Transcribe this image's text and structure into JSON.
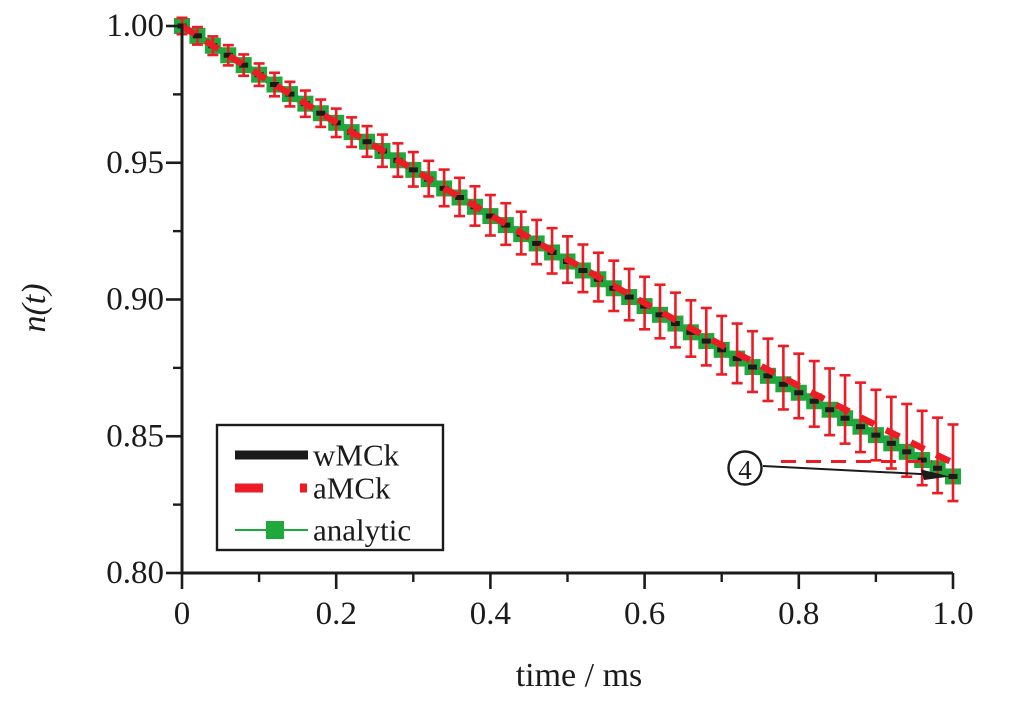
{
  "figure": {
    "background": "#ffffff",
    "frame": "left-bottom-axes-only"
  },
  "chart_data": {
    "type": "line",
    "title": "",
    "xlabel": "time / ms",
    "ylabel": "n(t)",
    "xlim": [
      0,
      1.0
    ],
    "ylim": [
      0.8,
      1.0
    ],
    "grid": false,
    "xticks": {
      "major": [
        0,
        0.2,
        0.4,
        0.6,
        0.8,
        1.0
      ],
      "labels": [
        "0",
        "0.2",
        "0.4",
        "0.6",
        "0.8",
        "1.0"
      ],
      "minor": [
        0.1,
        0.3,
        0.5,
        0.7,
        0.9
      ]
    },
    "yticks": {
      "major": [
        1.0,
        0.95,
        0.9,
        0.85,
        0.8
      ],
      "labels": [
        "1.00",
        "0.95",
        "0.90",
        "0.85",
        "0.80"
      ],
      "minor": [
        0.975,
        0.925,
        0.875,
        0.825
      ]
    },
    "x": [
      0.0,
      0.02,
      0.04,
      0.06,
      0.08,
      0.1,
      0.12,
      0.14,
      0.16,
      0.18,
      0.2,
      0.22,
      0.24,
      0.26,
      0.28,
      0.3,
      0.32,
      0.34,
      0.36,
      0.38,
      0.4,
      0.42,
      0.44,
      0.46,
      0.48,
      0.5,
      0.52,
      0.54,
      0.56,
      0.58,
      0.6,
      0.62,
      0.64,
      0.66,
      0.68,
      0.7,
      0.72,
      0.74,
      0.76,
      0.78,
      0.8,
      0.82,
      0.84,
      0.86,
      0.88,
      0.9,
      0.92,
      0.94,
      0.96,
      0.98,
      1.0
    ],
    "series": [
      {
        "name": "wMCk",
        "style": "thick-solid-line",
        "color": "#1b1b1b",
        "values": [
          1.0,
          0.9964,
          0.9928,
          0.9893,
          0.9857,
          0.9822,
          0.9786,
          0.9751,
          0.9716,
          0.9681,
          0.9646,
          0.9612,
          0.9577,
          0.9543,
          0.9509,
          0.9474,
          0.944,
          0.9406,
          0.9373,
          0.9339,
          0.9305,
          0.9272,
          0.9239,
          0.9205,
          0.9172,
          0.9139,
          0.9106,
          0.9074,
          0.9041,
          0.9009,
          0.8976,
          0.8944,
          0.8912,
          0.888,
          0.8848,
          0.8816,
          0.8784,
          0.8753,
          0.8721,
          0.869,
          0.8659,
          0.8628,
          0.8597,
          0.8566,
          0.8535,
          0.8504,
          0.8474,
          0.8443,
          0.8413,
          0.8383,
          0.8353
        ]
      },
      {
        "name": "aMCk",
        "style": "thick-dashed-line-with-errorbars",
        "color": "#ed1c24",
        "values": [
          1.0,
          0.9964,
          0.9928,
          0.9893,
          0.9857,
          0.9822,
          0.9786,
          0.9751,
          0.9716,
          0.9681,
          0.9646,
          0.9612,
          0.9578,
          0.9544,
          0.951,
          0.9476,
          0.9442,
          0.9408,
          0.9375,
          0.9342,
          0.9308,
          0.9276,
          0.9243,
          0.921,
          0.9178,
          0.9146,
          0.9114,
          0.9082,
          0.905,
          0.9018,
          0.8987,
          0.8956,
          0.8925,
          0.8894,
          0.8864,
          0.8833,
          0.8803,
          0.8773,
          0.8743,
          0.8714,
          0.8684,
          0.8655,
          0.8626,
          0.8598,
          0.8569,
          0.8541,
          0.8513,
          0.8485,
          0.8457,
          0.843,
          0.8403
        ],
        "errors": [
          0.003,
          0.0032,
          0.0034,
          0.0037,
          0.0039,
          0.0041,
          0.0043,
          0.0045,
          0.0048,
          0.005,
          0.0052,
          0.0054,
          0.0056,
          0.0059,
          0.0061,
          0.0063,
          0.0065,
          0.0067,
          0.007,
          0.0072,
          0.0074,
          0.0076,
          0.0078,
          0.0081,
          0.0083,
          0.0085,
          0.0087,
          0.0089,
          0.0092,
          0.0094,
          0.0096,
          0.0098,
          0.01,
          0.0103,
          0.0105,
          0.0107,
          0.0109,
          0.0111,
          0.0114,
          0.0116,
          0.0118,
          0.012,
          0.0122,
          0.0125,
          0.0127,
          0.0129,
          0.0131,
          0.0133,
          0.0136,
          0.0138,
          0.014
        ]
      },
      {
        "name": "analytic",
        "style": "thin-line-with-square-markers",
        "color": "#1fa83c",
        "values": [
          1.0,
          0.9964,
          0.9928,
          0.9893,
          0.9857,
          0.9822,
          0.9786,
          0.9751,
          0.9716,
          0.9681,
          0.9646,
          0.9612,
          0.9577,
          0.9543,
          0.9509,
          0.9474,
          0.944,
          0.9406,
          0.9373,
          0.9339,
          0.9305,
          0.9272,
          0.9239,
          0.9205,
          0.9172,
          0.9139,
          0.9106,
          0.9074,
          0.9041,
          0.9009,
          0.8976,
          0.8944,
          0.8912,
          0.888,
          0.8848,
          0.8816,
          0.8784,
          0.8753,
          0.8721,
          0.869,
          0.8659,
          0.8628,
          0.8597,
          0.8566,
          0.8535,
          0.8504,
          0.8474,
          0.8443,
          0.8413,
          0.8383,
          0.8353
        ]
      }
    ],
    "legend": {
      "position": "lower-left",
      "entries": [
        "wMCk",
        "aMCk",
        "analytic"
      ]
    },
    "annotation": {
      "label": "4",
      "circled": true,
      "points_to": "end of curves at t = 1.0 ms"
    }
  }
}
